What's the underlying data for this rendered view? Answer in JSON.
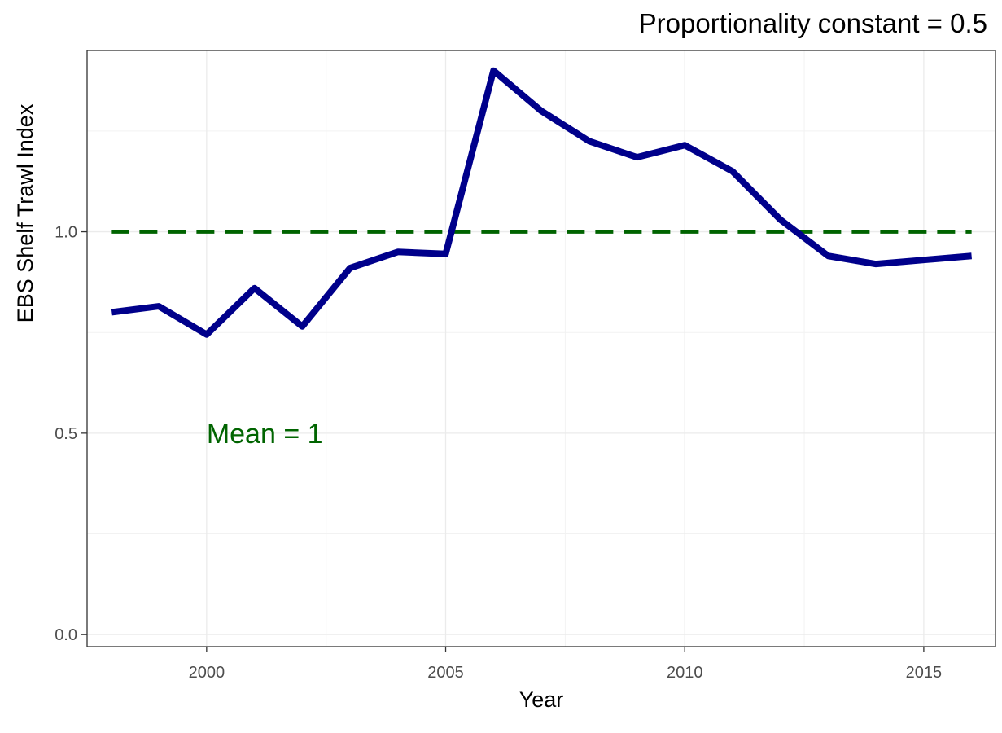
{
  "chart_data": {
    "type": "line",
    "title": "Proportionality constant = 0.5",
    "xlabel": "Year",
    "ylabel": "EBS Shelf Trawl Index",
    "xlim": [
      1997.5,
      2016.5
    ],
    "ylim": [
      -0.03,
      1.45
    ],
    "x_ticks": [
      2000,
      2005,
      2010,
      2015
    ],
    "x_tick_labels": [
      "2000",
      "2005",
      "2010",
      "2015"
    ],
    "y_ticks": [
      0.0,
      0.5,
      1.0
    ],
    "y_tick_labels": [
      "0.0",
      "0.5",
      "1.0"
    ],
    "grid": true,
    "series": [
      {
        "color": "#00008b",
        "x": [
          1998,
          1999,
          2000,
          2001,
          2002,
          2003,
          2004,
          2005,
          2006,
          2007,
          2008,
          2009,
          2010,
          2011,
          2012,
          2013,
          2014,
          2015,
          2016
        ],
        "y": [
          0.8,
          0.815,
          0.745,
          0.86,
          0.765,
          0.91,
          0.95,
          0.945,
          1.4,
          1.3,
          1.225,
          1.185,
          1.215,
          1.15,
          1.03,
          0.94,
          0.92,
          0.93,
          0.94
        ]
      }
    ],
    "reference_line": {
      "y": 1.0,
      "style": "dashed",
      "color": "#006400"
    },
    "annotation": {
      "text": "Mean = 1",
      "x": 2000,
      "y": 0.5,
      "color": "#006400"
    }
  }
}
